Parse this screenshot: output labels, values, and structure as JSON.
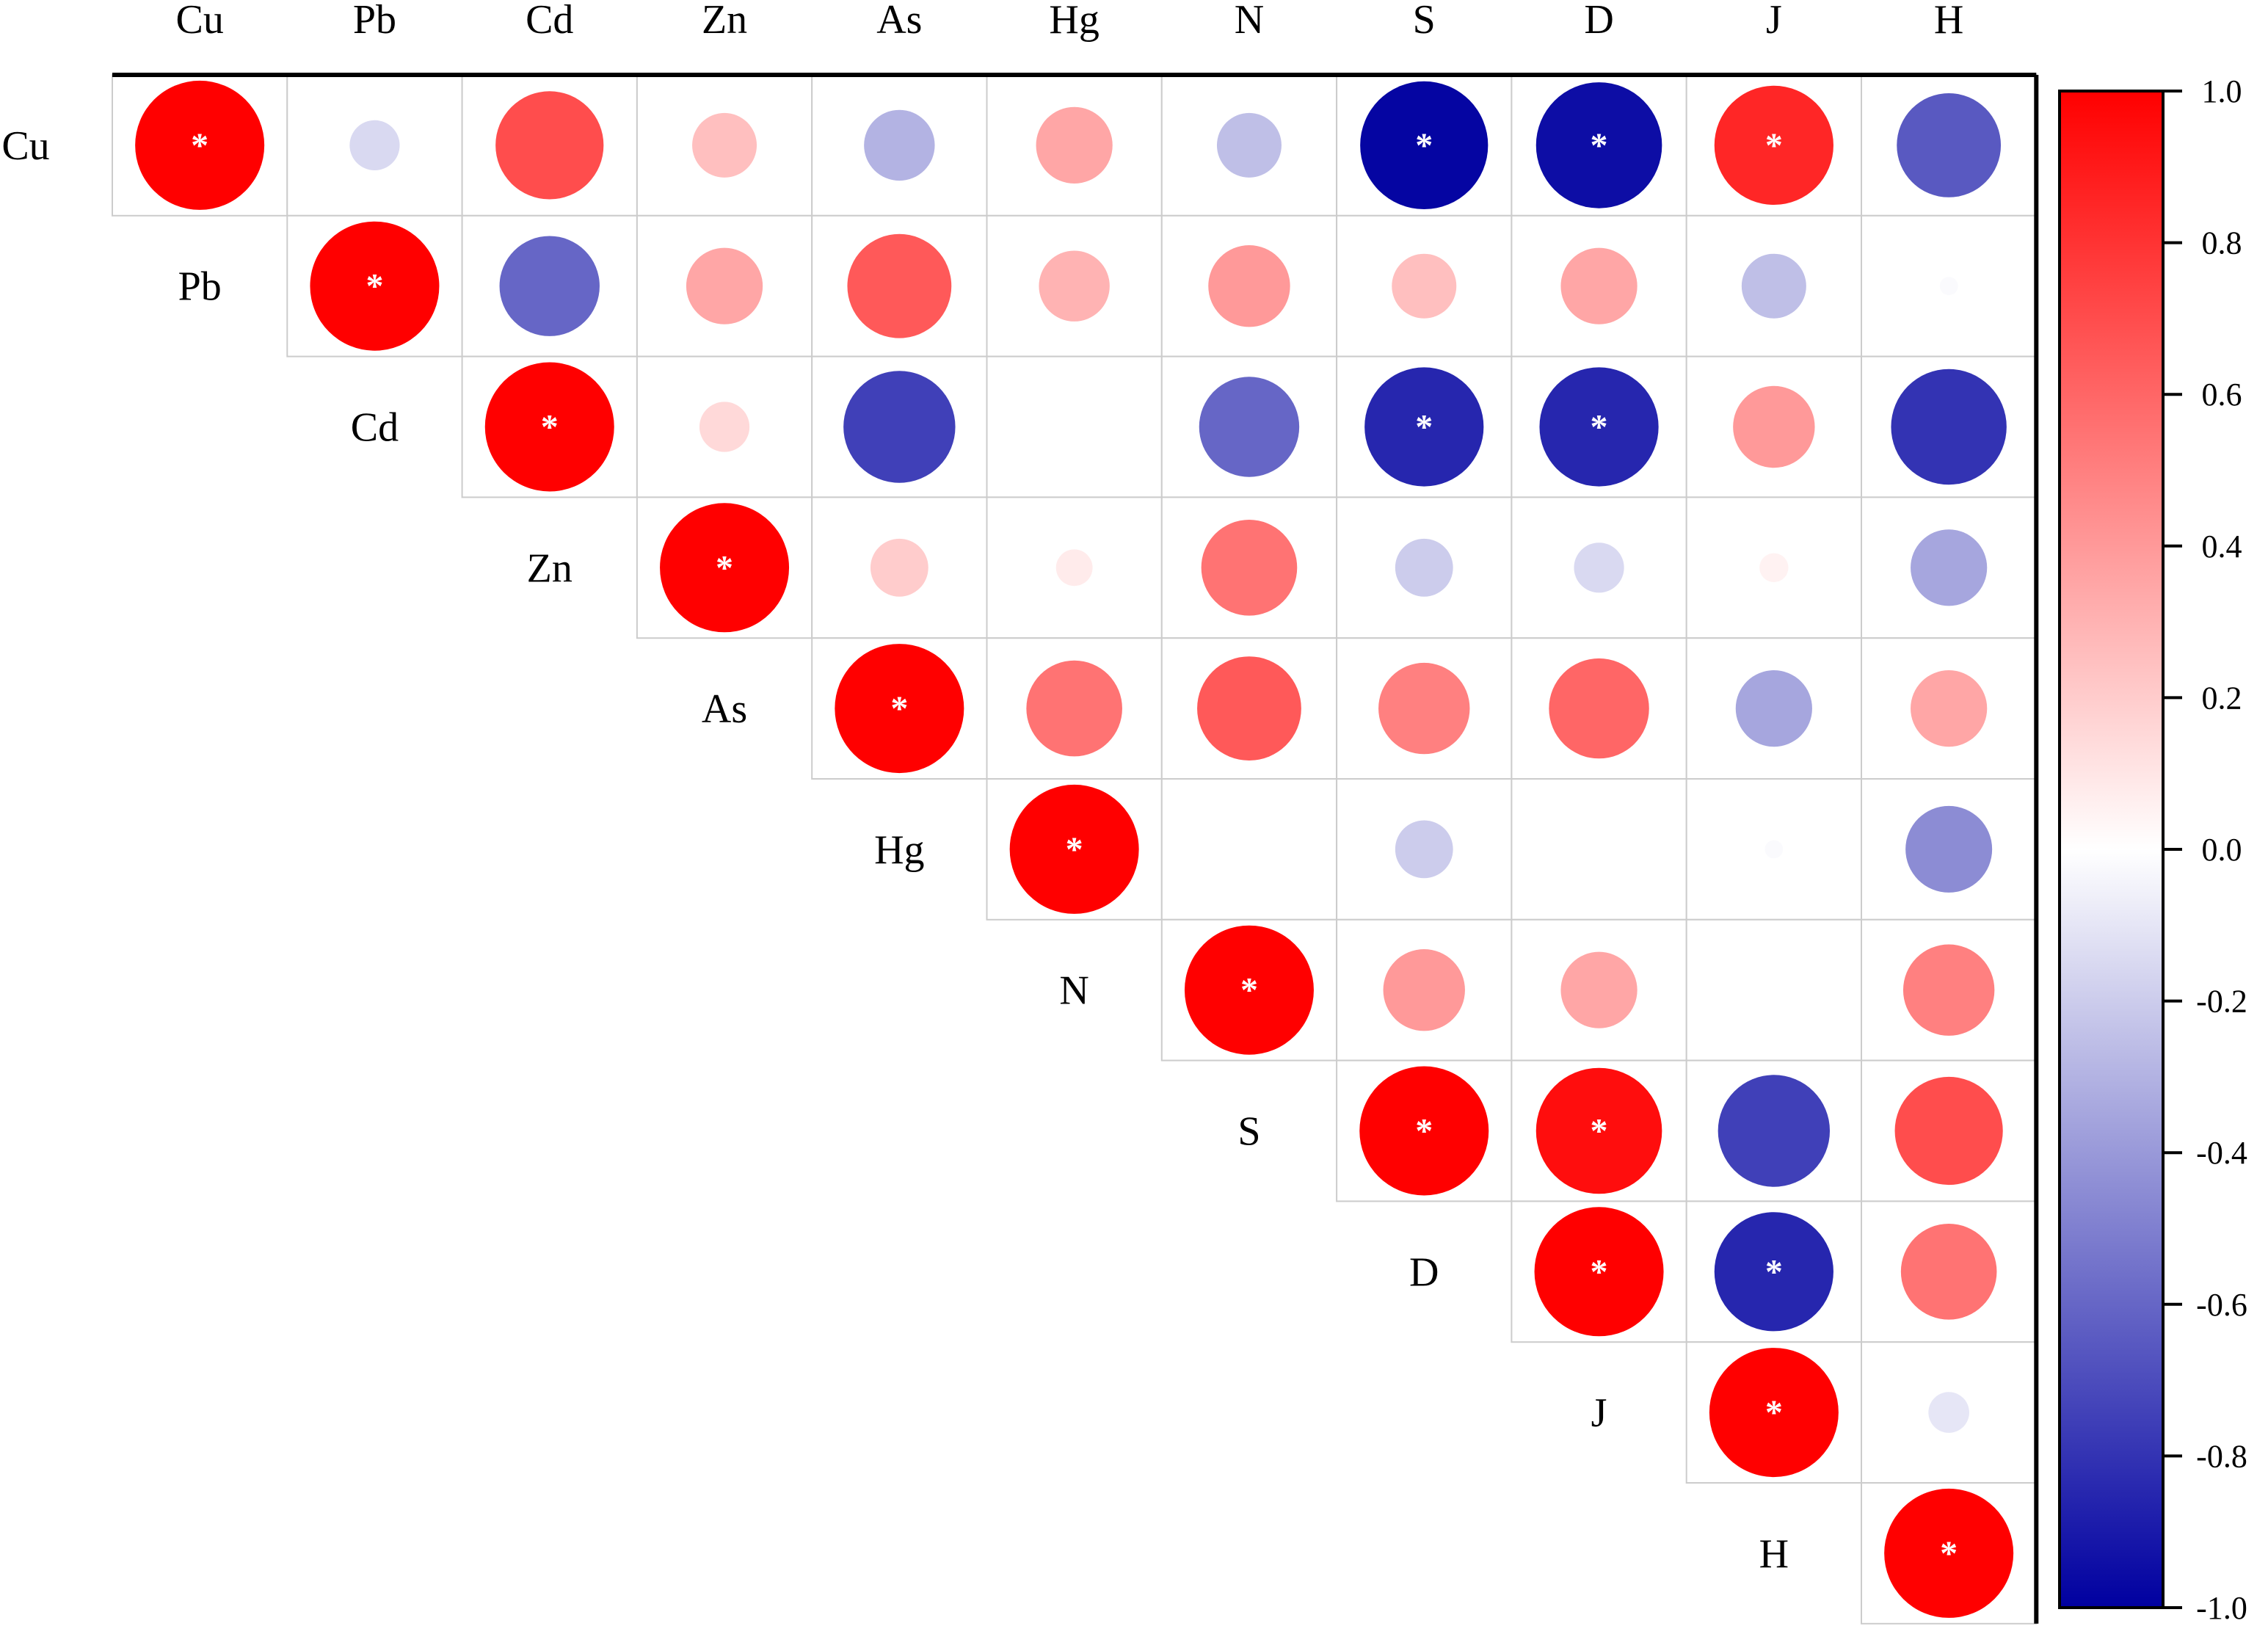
{
  "chart_data": {
    "type": "heatmap",
    "title": "",
    "variables": [
      "Cu",
      "Pb",
      "Cd",
      "Zn",
      "As",
      "Hg",
      "N",
      "S",
      "D",
      "J",
      "H"
    ],
    "significance_marker": "*",
    "value_range": [
      -1.0,
      1.0
    ],
    "colorbar": {
      "ticks": [
        "1.0",
        "0.8",
        "0.6",
        "0.4",
        "0.2",
        "0.0",
        "-0.2",
        "-0.4",
        "-0.6",
        "-0.8",
        "-1.0"
      ],
      "tick_values": [
        1.0,
        0.8,
        0.6,
        0.4,
        0.2,
        0.0,
        -0.2,
        -0.4,
        -0.6,
        -0.8,
        -1.0
      ],
      "colors": {
        "negative": "#0000a0",
        "zero": "#ffffff",
        "positive": "#ff0000"
      }
    },
    "layout": "upper-triangle",
    "matrix": [
      [
        1.0,
        -0.15,
        0.7,
        0.25,
        -0.3,
        0.35,
        -0.25,
        -0.98,
        -0.95,
        0.85,
        -0.65
      ],
      [
        null,
        1.0,
        -0.6,
        0.35,
        0.65,
        0.3,
        0.4,
        0.25,
        0.35,
        -0.25,
        -0.02
      ],
      [
        null,
        null,
        1.0,
        0.15,
        -0.75,
        0.0,
        -0.6,
        -0.85,
        -0.85,
        0.4,
        -0.8
      ],
      [
        null,
        null,
        null,
        1.0,
        0.2,
        0.08,
        0.55,
        -0.2,
        -0.15,
        0.05,
        -0.35
      ],
      [
        null,
        null,
        null,
        null,
        1.0,
        0.55,
        0.65,
        0.5,
        0.6,
        -0.35,
        0.35
      ],
      [
        null,
        null,
        null,
        null,
        null,
        1.0,
        0.0,
        -0.2,
        0.0,
        -0.02,
        -0.45
      ],
      [
        null,
        null,
        null,
        null,
        null,
        null,
        1.0,
        0.4,
        0.35,
        0.0,
        0.5
      ],
      [
        null,
        null,
        null,
        null,
        null,
        null,
        null,
        1.0,
        0.95,
        -0.75,
        0.7
      ],
      [
        null,
        null,
        null,
        null,
        null,
        null,
        null,
        null,
        1.0,
        -0.85,
        0.55
      ],
      [
        null,
        null,
        null,
        null,
        null,
        null,
        null,
        null,
        null,
        1.0,
        -0.1
      ],
      [
        null,
        null,
        null,
        null,
        null,
        null,
        null,
        null,
        null,
        null,
        1.0
      ]
    ],
    "significant": [
      [
        true,
        false,
        false,
        false,
        false,
        false,
        false,
        true,
        true,
        true,
        false
      ],
      [
        null,
        true,
        false,
        false,
        false,
        false,
        false,
        false,
        false,
        false,
        false
      ],
      [
        null,
        null,
        true,
        false,
        false,
        false,
        false,
        true,
        true,
        false,
        false
      ],
      [
        null,
        null,
        null,
        true,
        false,
        false,
        false,
        false,
        false,
        false,
        false
      ],
      [
        null,
        null,
        null,
        null,
        true,
        false,
        false,
        false,
        false,
        false,
        false
      ],
      [
        null,
        null,
        null,
        null,
        null,
        true,
        false,
        false,
        false,
        false,
        false
      ],
      [
        null,
        null,
        null,
        null,
        null,
        null,
        true,
        false,
        false,
        false,
        false
      ],
      [
        null,
        null,
        null,
        null,
        null,
        null,
        null,
        true,
        true,
        false,
        false
      ],
      [
        null,
        null,
        null,
        null,
        null,
        null,
        null,
        null,
        true,
        true,
        false
      ],
      [
        null,
        null,
        null,
        null,
        null,
        null,
        null,
        null,
        null,
        true,
        false
      ],
      [
        null,
        null,
        null,
        null,
        null,
        null,
        null,
        null,
        null,
        null,
        true
      ]
    ]
  }
}
